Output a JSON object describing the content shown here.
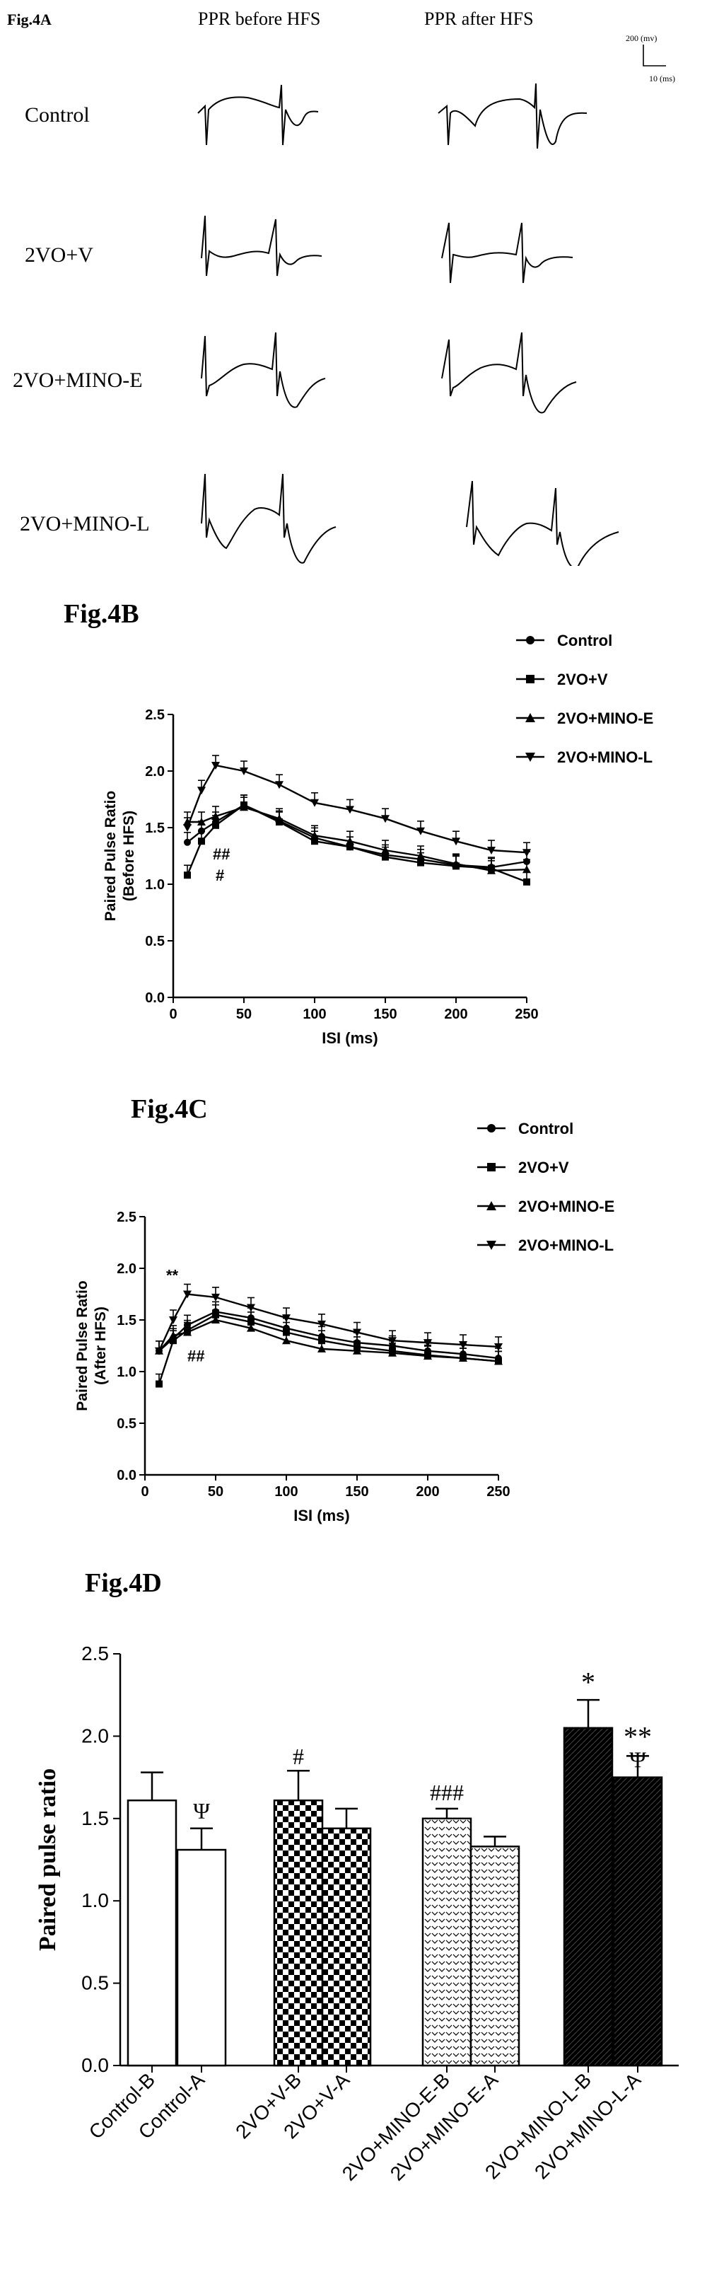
{
  "panel_a": {
    "label": "Fig.4A",
    "col_headers": [
      "PPR before HFS",
      "PPR after HFS"
    ],
    "rows": [
      "Control",
      "2VO+V",
      "2VO+MINO-E",
      "2VO+MINO-L"
    ],
    "scale_bar": {
      "y_label": "200 (mv)",
      "x_label": "10 (ms)"
    }
  },
  "chart_data": [
    {
      "type": "line",
      "label": "Fig.4B",
      "xlabel": "ISI (ms)",
      "ylabel_lines": [
        "Paired Pulse Ratio",
        "(Before HFS)"
      ],
      "x": [
        10,
        20,
        30,
        50,
        75,
        100,
        125,
        150,
        175,
        200,
        225,
        250
      ],
      "xticks": [
        0,
        50,
        100,
        150,
        200,
        250
      ],
      "yticks": [
        0.0,
        0.5,
        1.0,
        1.5,
        2.0,
        2.5
      ],
      "xlim": [
        0,
        250
      ],
      "ylim": [
        0.0,
        2.5
      ],
      "series": [
        {
          "name": "Control",
          "marker": "circle",
          "values": [
            1.37,
            1.47,
            1.55,
            1.7,
            1.56,
            1.41,
            1.33,
            1.26,
            1.22,
            1.17,
            1.15,
            1.2
          ]
        },
        {
          "name": "2VO+V",
          "marker": "square",
          "values": [
            1.08,
            1.38,
            1.52,
            1.7,
            1.55,
            1.38,
            1.33,
            1.24,
            1.19,
            1.16,
            1.14,
            1.02
          ]
        },
        {
          "name": "2VO+MINO-E",
          "marker": "triangle-up",
          "values": [
            1.55,
            1.55,
            1.6,
            1.68,
            1.58,
            1.43,
            1.38,
            1.3,
            1.25,
            1.18,
            1.12,
            1.13
          ]
        },
        {
          "name": "2VO+MINO-L",
          "marker": "triangle-down",
          "values": [
            1.5,
            1.83,
            2.05,
            2.0,
            1.88,
            1.72,
            1.66,
            1.58,
            1.47,
            1.38,
            1.3,
            1.28
          ]
        }
      ],
      "annotations": [
        "##",
        "#"
      ],
      "legend": "top-right"
    },
    {
      "type": "line",
      "label": "Fig.4C",
      "xlabel": "ISI (ms)",
      "ylabel_lines": [
        "Paired Pulse Ratio",
        "(After HFS)"
      ],
      "x": [
        10,
        20,
        30,
        50,
        75,
        100,
        125,
        150,
        175,
        200,
        225,
        250
      ],
      "xticks": [
        0,
        50,
        100,
        150,
        200,
        250
      ],
      "yticks": [
        0.0,
        0.5,
        1.0,
        1.5,
        2.0,
        2.5
      ],
      "xlim": [
        0,
        250
      ],
      "ylim": [
        0.0,
        2.5
      ],
      "series": [
        {
          "name": "Control",
          "marker": "circle",
          "values": [
            1.2,
            1.32,
            1.45,
            1.58,
            1.52,
            1.42,
            1.34,
            1.28,
            1.25,
            1.2,
            1.17,
            1.13
          ]
        },
        {
          "name": "2VO+V",
          "marker": "square",
          "values": [
            0.88,
            1.3,
            1.4,
            1.55,
            1.48,
            1.38,
            1.3,
            1.24,
            1.2,
            1.16,
            1.13,
            1.1
          ]
        },
        {
          "name": "2VO+MINO-E",
          "marker": "triangle-up",
          "values": [
            1.2,
            1.35,
            1.38,
            1.5,
            1.42,
            1.3,
            1.22,
            1.2,
            1.18,
            1.15,
            1.13,
            1.1
          ]
        },
        {
          "name": "2VO+MINO-L",
          "marker": "triangle-down",
          "values": [
            1.2,
            1.5,
            1.75,
            1.72,
            1.62,
            1.52,
            1.46,
            1.38,
            1.3,
            1.28,
            1.26,
            1.24
          ]
        }
      ],
      "annotations": [
        "**",
        "##"
      ],
      "legend": "top-right"
    },
    {
      "type": "bar",
      "label": "Fig.4D",
      "ylabel": "Paired pulse ratio",
      "yticks": [
        0.0,
        0.5,
        1.0,
        1.5,
        2.0,
        2.5
      ],
      "ylim": [
        0.0,
        2.5
      ],
      "categories": [
        "Control-B",
        "Control-A",
        "2VO+V-B",
        "2VO+V-A",
        "2VO+MINO-E-B",
        "2VO+MINO-E-A",
        "2VO+MINO-L-B",
        "2VO+MINO-L-A"
      ],
      "values": [
        1.61,
        1.31,
        1.61,
        1.44,
        1.5,
        1.33,
        2.05,
        1.75
      ],
      "errors": [
        0.17,
        0.13,
        0.18,
        0.12,
        0.06,
        0.06,
        0.17,
        0.13
      ],
      "patterns": [
        "white",
        "white",
        "checker",
        "checker",
        "dots",
        "dots",
        "black",
        "black"
      ],
      "annotations": [
        "Ψ",
        "#",
        "###",
        "*",
        "**",
        "Ψ"
      ]
    }
  ]
}
